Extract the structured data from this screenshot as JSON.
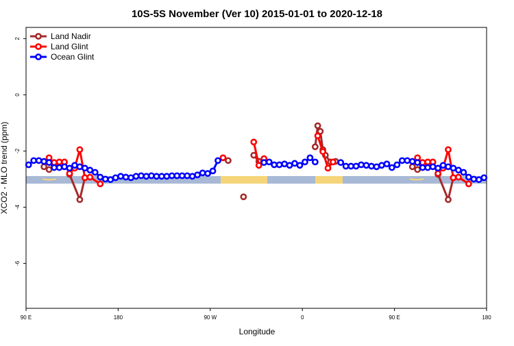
{
  "chart_data": {
    "type": "line",
    "title": "10S-5S November (Ver 10)   2015-01-01 to 2020-12-18",
    "x_label": "Longitude",
    "y_label": "XCO2 - MLO trend (ppm)",
    "xlim": [
      90,
      540
    ],
    "ylim": [
      -7.6,
      2.4
    ],
    "xticks": [
      {
        "value": 90,
        "label": "90 E"
      },
      180,
      {
        "value": 270,
        "label": "90 W"
      },
      {
        "value": 360,
        "label": "0"
      },
      {
        "value": 450,
        "label": "90 E"
      },
      {
        "value": 540,
        "label": "180"
      }
    ],
    "yticks": [
      -6,
      -4,
      -2,
      0,
      2
    ],
    "legend_position": "top-left",
    "series": [
      {
        "name": "Land Nadir",
        "color": "#a52a2a",
        "x": [
          107.5,
          112.5,
          117.5,
          122.5,
          127.5,
          132.5,
          142.5,
          147.5,
          200,
          287.5,
          295,
          302.5,
          307.5,
          312.5,
          317.5,
          345,
          372.5,
          375,
          377.5,
          380,
          382.5,
          387.5,
          392.5,
          430,
          467.5,
          472.5,
          477.5,
          482.5,
          487.5,
          492.5,
          502.5,
          507.5
        ],
        "values": [
          -2.56,
          -2.66,
          -2.5,
          -2.41,
          -2.41,
          -2.83,
          -3.73,
          -2.95,
          null,
          -2.34,
          null,
          -3.63,
          null,
          -2.15,
          -2.37,
          null,
          -1.85,
          -1.1,
          -1.3,
          -1.95,
          -2.15,
          -2.39,
          -2.37,
          null,
          -2.56,
          -2.66,
          -2.5,
          -2.41,
          -2.41,
          -2.83,
          -3.73,
          -2.95
        ]
      },
      {
        "name": "Land Glint",
        "color": "#ff0000",
        "x": [
          112.5,
          117.5,
          122.5,
          127.5,
          132.5,
          137.5,
          142.5,
          147.5,
          152.5,
          162.5,
          220,
          282.5,
          300,
          312.5,
          317.5,
          322.5,
          350,
          375,
          380,
          385,
          390,
          430,
          472.5,
          477.5,
          482.5,
          487.5,
          492.5,
          497.5,
          502.5,
          507.5,
          512.5,
          522.5
        ],
        "values": [
          -2.24,
          -2.41,
          -2.39,
          -2.39,
          -2.8,
          -2.61,
          -1.95,
          -2.95,
          -2.93,
          -3.17,
          null,
          -2.24,
          null,
          -1.68,
          -2.51,
          -2.27,
          null,
          -1.46,
          -2.02,
          -2.61,
          -2.39,
          null,
          -2.24,
          -2.41,
          -2.39,
          -2.39,
          -2.8,
          -2.61,
          -1.95,
          -2.95,
          -2.93,
          -3.17
        ]
      },
      {
        "name": "Ocean Glint",
        "color": "#0000ff",
        "x": [
          92.5,
          97.5,
          102.5,
          107.5,
          112.5,
          117.5,
          122.5,
          127.5,
          132.5,
          137.5,
          142.5,
          147.5,
          152.5,
          157.5,
          162.5,
          167.5,
          172.5,
          177.5,
          182.5,
          187.5,
          192.5,
          197.5,
          202.5,
          207.5,
          212.5,
          217.5,
          222.5,
          227.5,
          232.5,
          237.5,
          242.5,
          247.5,
          252.5,
          257.5,
          262.5,
          267.5,
          272.5,
          277.5,
          300,
          322.5,
          327.5,
          332.5,
          337.5,
          342.5,
          347.5,
          352.5,
          357.5,
          362.5,
          367.5,
          372.5,
          385,
          397.5,
          402.5,
          407.5,
          412.5,
          417.5,
          422.5,
          427.5,
          432.5,
          437.5,
          442.5,
          447.5,
          452.5,
          457.5,
          462.5,
          467.5,
          472.5,
          477.5,
          482.5,
          487.5,
          492.5,
          497.5,
          502.5,
          507.5,
          512.5,
          517.5,
          522.5,
          527.5,
          532.5,
          537.5
        ],
        "values": [
          -2.49,
          -2.34,
          -2.34,
          -2.37,
          -2.41,
          -2.59,
          -2.59,
          -2.56,
          -2.61,
          -2.51,
          -2.56,
          -2.61,
          -2.68,
          -2.76,
          -2.93,
          -3.0,
          -3.02,
          -2.95,
          -2.9,
          -2.93,
          -2.95,
          -2.9,
          -2.88,
          -2.9,
          -2.88,
          -2.9,
          -2.9,
          -2.9,
          -2.88,
          -2.88,
          -2.88,
          -2.88,
          -2.9,
          -2.85,
          -2.78,
          -2.8,
          -2.71,
          -2.34,
          null,
          -2.41,
          -2.39,
          -2.49,
          -2.49,
          -2.46,
          -2.51,
          -2.44,
          -2.51,
          -2.39,
          -2.24,
          -2.39,
          null,
          -2.41,
          -2.54,
          -2.54,
          -2.54,
          -2.49,
          -2.51,
          -2.54,
          -2.56,
          -2.51,
          -2.46,
          -2.59,
          -2.49,
          -2.34,
          -2.34,
          -2.37,
          -2.41,
          -2.59,
          -2.59,
          -2.56,
          -2.61,
          -2.51,
          -2.56,
          -2.61,
          -2.68,
          -2.76,
          -2.93,
          -3.0,
          -3.02,
          -2.95
        ]
      }
    ]
  }
}
